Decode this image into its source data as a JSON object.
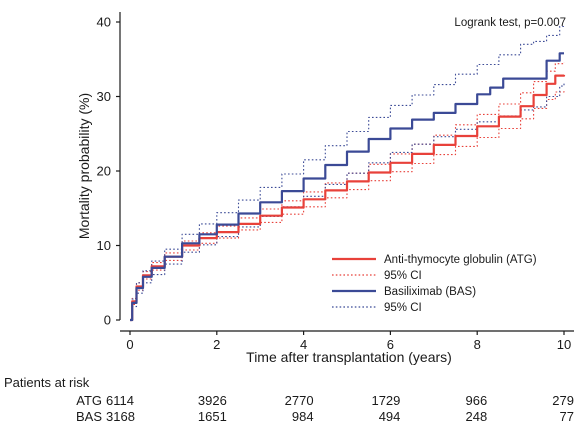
{
  "chart_data": {
    "type": "line",
    "title": "",
    "annotation": "Logrank test, p=0.007",
    "xlabel": "Time after transplantation (years)",
    "ylabel": "Mortality probability (%)",
    "xlim": [
      0,
      10
    ],
    "ylim": [
      0,
      40
    ],
    "x_ticks": [
      0,
      2,
      4,
      6,
      8,
      10
    ],
    "y_ticks": [
      0,
      10,
      20,
      30,
      40
    ],
    "grid": false,
    "legend_position": "bottom-right",
    "colors": {
      "atg": "#e8413a",
      "bas": "#3b4a96"
    },
    "series": [
      {
        "name": "Anti-thymocyte globulin (ATG)",
        "style": "solid",
        "color": "#e8413a",
        "x": [
          0,
          0.05,
          0.15,
          0.3,
          0.5,
          0.8,
          1.2,
          1.6,
          2,
          2.5,
          3,
          3.5,
          4,
          4.5,
          5,
          5.5,
          6,
          6.5,
          7,
          7.5,
          8,
          8.5,
          9,
          9.3,
          9.6,
          9.8,
          10
        ],
        "y": [
          0,
          2.5,
          4.5,
          6.0,
          7.2,
          8.5,
          10.0,
          11.0,
          11.8,
          12.9,
          14.0,
          15.1,
          16.2,
          17.4,
          18.6,
          19.8,
          21.1,
          22.3,
          23.5,
          24.7,
          26.0,
          27.3,
          28.7,
          30.2,
          31.7,
          32.8,
          32.9
        ]
      },
      {
        "name": "95% CI",
        "style": "dotted",
        "color": "#e8413a",
        "x": [
          0,
          0.05,
          0.15,
          0.3,
          0.5,
          0.8,
          1.2,
          1.6,
          2,
          2.5,
          3,
          3.5,
          4,
          4.5,
          5,
          5.5,
          6,
          6.5,
          7,
          7.5,
          8,
          8.5,
          9,
          9.3,
          9.6,
          9.8,
          10
        ],
        "y": [
          0,
          2.9,
          5.0,
          6.5,
          7.7,
          9.0,
          10.6,
          11.7,
          12.6,
          13.7,
          14.9,
          16.0,
          17.2,
          18.4,
          19.7,
          20.9,
          22.3,
          23.6,
          24.8,
          26.2,
          27.6,
          29.0,
          30.5,
          32.0,
          33.4,
          34.4,
          34.6
        ]
      },
      {
        "name": "95% CI",
        "style": "dotted",
        "color": "#e8413a",
        "x": [
          0,
          0.05,
          0.15,
          0.3,
          0.5,
          0.8,
          1.2,
          1.6,
          2,
          2.5,
          3,
          3.5,
          4,
          4.5,
          5,
          5.5,
          6,
          6.5,
          7,
          7.5,
          8,
          8.5,
          9,
          9.3,
          9.6,
          9.8,
          10
        ],
        "y": [
          0,
          2.1,
          4.0,
          5.5,
          6.7,
          8.0,
          9.4,
          10.3,
          11.0,
          12.1,
          13.1,
          14.2,
          15.2,
          16.4,
          17.5,
          18.7,
          19.9,
          21.0,
          22.2,
          23.3,
          24.5,
          25.7,
          27.0,
          28.4,
          29.6,
          30.6,
          30.7
        ]
      },
      {
        "name": "Basiliximab (BAS)",
        "style": "solid",
        "color": "#3b4a96",
        "x": [
          0,
          0.05,
          0.15,
          0.3,
          0.5,
          0.8,
          1.2,
          1.6,
          2,
          2.5,
          3,
          3.5,
          4,
          4.5,
          5,
          5.5,
          6,
          6.5,
          7,
          7.5,
          8,
          8.3,
          8.6,
          9,
          9.4,
          9.6,
          9.9,
          10
        ],
        "y": [
          0,
          2.3,
          4.3,
          5.8,
          7.0,
          8.5,
          10.3,
          11.5,
          12.8,
          14.3,
          15.8,
          17.3,
          19.0,
          20.8,
          22.6,
          24.3,
          25.7,
          26.9,
          27.8,
          29.0,
          30.3,
          31.2,
          32.4,
          32.4,
          32.4,
          34.8,
          35.8,
          35.8
        ]
      },
      {
        "name": "95% CI",
        "style": "dotted",
        "color": "#3b4a96",
        "x": [
          0,
          0.05,
          0.15,
          0.3,
          0.5,
          0.8,
          1.2,
          1.6,
          2,
          2.5,
          3,
          3.5,
          4,
          4.5,
          5,
          5.5,
          6,
          6.5,
          7,
          7.5,
          8,
          8.5,
          9,
          9.3,
          9.6,
          9.9,
          10
        ],
        "y": [
          0,
          2.8,
          5.0,
          6.6,
          7.9,
          9.5,
          11.5,
          12.9,
          14.4,
          16.1,
          17.8,
          19.6,
          21.5,
          23.4,
          25.3,
          27.2,
          28.8,
          30.2,
          31.6,
          33.0,
          34.3,
          35.6,
          37.0,
          37.4,
          38.2,
          39.4,
          39.6
        ]
      },
      {
        "name": "95% CI",
        "style": "dotted",
        "color": "#3b4a96",
        "x": [
          0,
          0.05,
          0.15,
          0.3,
          0.5,
          0.8,
          1.2,
          1.6,
          2,
          2.5,
          3,
          3.5,
          4,
          4.5,
          5,
          5.5,
          6,
          6.5,
          7,
          7.5,
          8,
          8.5,
          9,
          9.3,
          9.6,
          9.9,
          10
        ],
        "y": [
          0,
          1.8,
          3.6,
          5.0,
          6.1,
          7.5,
          9.1,
          10.1,
          11.2,
          12.5,
          13.9,
          15.2,
          16.6,
          18.2,
          19.7,
          21.1,
          22.5,
          23.6,
          24.6,
          25.6,
          26.6,
          27.4,
          28.2,
          28.6,
          30.0,
          31.4,
          31.8
        ]
      }
    ],
    "legend": [
      {
        "label": "Anti-thymocyte globulin (ATG)",
        "color": "#e8413a",
        "style": "solid"
      },
      {
        "label": "95% CI",
        "color": "#e8413a",
        "style": "dotted"
      },
      {
        "label": "Basiliximab (BAS)",
        "color": "#3b4a96",
        "style": "solid"
      },
      {
        "label": "95% CI",
        "color": "#3b4a96",
        "style": "dotted"
      }
    ],
    "risk_table": {
      "title": "Patients at risk",
      "time_points": [
        0,
        2,
        4,
        6,
        8,
        10
      ],
      "rows": [
        {
          "label": "ATG",
          "values": [
            "6114",
            "3926",
            "2770",
            "1729",
            "966",
            "279"
          ]
        },
        {
          "label": "BAS",
          "values": [
            "3168",
            "1651",
            "984",
            "494",
            "248",
            "77"
          ]
        }
      ]
    }
  }
}
